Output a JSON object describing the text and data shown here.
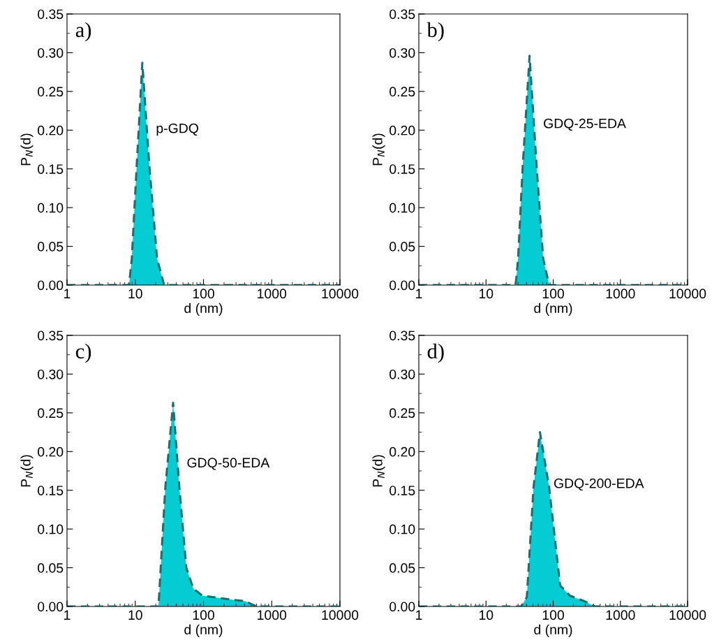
{
  "chart_data": [
    {
      "type": "area",
      "title": "a)",
      "xlabel": "d (nm)",
      "ylabel": "P$_{N}$(d)",
      "log": "x",
      "xlim": [
        1,
        10000
      ],
      "xticks": [
        1,
        10,
        100,
        1000,
        10000
      ],
      "ylim": [
        0,
        0.35
      ],
      "yticks": [
        {
          "value": 0,
          "label": "0.00"
        },
        {
          "value": 0.05,
          "label": "0.05"
        },
        {
          "value": 0.1,
          "label": "0.10"
        },
        {
          "value": 0.15,
          "label": "0.15"
        },
        {
          "value": 0.2,
          "label": "0.20"
        },
        {
          "value": 0.25,
          "label": "0.25"
        },
        {
          "value": 0.3,
          "label": "0.30"
        },
        {
          "value": 0.35,
          "label": "0.35"
        }
      ],
      "grid": false,
      "line_style": "dashed",
      "series": [
        {
          "name": "p-GDQ",
          "color": "#05cbd2",
          "x": [
            1,
            8.1,
            8.9,
            10.5,
            12.7,
            16.1,
            20.9,
            26.5,
            10000
          ],
          "values": [
            0,
            0,
            0.034,
            0.154,
            0.287,
            0.154,
            0.034,
            0,
            0
          ]
        }
      ]
    },
    {
      "type": "area",
      "title": "b)",
      "xlabel": "d (nm)",
      "ylabel": "P$_{N}$(d)",
      "log": "x",
      "xlim": [
        1,
        10000
      ],
      "xticks": [
        1,
        10,
        100,
        1000,
        10000
      ],
      "ylim": [
        0,
        0.35
      ],
      "yticks": [
        {
          "value": 0,
          "label": "0.00"
        },
        {
          "value": 0.05,
          "label": "0.05"
        },
        {
          "value": 0.1,
          "label": "0.10"
        },
        {
          "value": 0.15,
          "label": "0.15"
        },
        {
          "value": 0.2,
          "label": "0.20"
        },
        {
          "value": 0.25,
          "label": "0.25"
        },
        {
          "value": 0.3,
          "label": "0.30"
        },
        {
          "value": 0.35,
          "label": "0.35"
        }
      ],
      "grid": false,
      "line_style": "dashed",
      "series": [
        {
          "name": "GDQ-25-EDA",
          "color": "#05cbd2",
          "x": [
            1,
            27,
            28,
            30,
            35,
            44.5,
            57,
            71,
            87,
            10000
          ],
          "values": [
            0,
            0,
            0.005,
            0.034,
            0.15,
            0.296,
            0.15,
            0.034,
            0,
            0
          ]
        }
      ]
    },
    {
      "type": "area",
      "title": "c)",
      "xlabel": "d (nm)",
      "ylabel": "P$_{N}$(d)",
      "log": "x",
      "xlim": [
        1,
        10000
      ],
      "xticks": [
        1,
        10,
        100,
        1000,
        10000
      ],
      "ylim": [
        0,
        0.35
      ],
      "yticks": [
        {
          "value": 0,
          "label": "0.00"
        },
        {
          "value": 0.05,
          "label": "0.05"
        },
        {
          "value": 0.1,
          "label": "0.10"
        },
        {
          "value": 0.15,
          "label": "0.15"
        },
        {
          "value": 0.2,
          "label": "0.20"
        },
        {
          "value": 0.25,
          "label": "0.25"
        },
        {
          "value": 0.3,
          "label": "0.30"
        },
        {
          "value": 0.35,
          "label": "0.35"
        }
      ],
      "grid": false,
      "line_style": "dashed",
      "series": [
        {
          "name": "GDQ-50-EDA",
          "color": "#05cbd2",
          "x": [
            1,
            21.9,
            27.6,
            35.9,
            44.3,
            56,
            71,
            96,
            247,
            400,
            600,
            10000
          ],
          "values": [
            0,
            0,
            0.154,
            0.263,
            0.154,
            0.05,
            0.023,
            0.014,
            0.009,
            0.007,
            0,
            0
          ]
        }
      ]
    },
    {
      "type": "area",
      "title": "d)",
      "xlabel": "d (nm)",
      "ylabel": "P$_{N}$(d)",
      "log": "x",
      "xlim": [
        1,
        10000
      ],
      "xticks": [
        1,
        10,
        100,
        1000,
        10000
      ],
      "ylim": [
        0,
        0.35
      ],
      "yticks": [
        {
          "value": 0,
          "label": "0.00"
        },
        {
          "value": 0.05,
          "label": "0.05"
        },
        {
          "value": 0.1,
          "label": "0.10"
        },
        {
          "value": 0.15,
          "label": "0.15"
        },
        {
          "value": 0.2,
          "label": "0.20"
        },
        {
          "value": 0.25,
          "label": "0.25"
        },
        {
          "value": 0.3,
          "label": "0.30"
        },
        {
          "value": 0.35,
          "label": "0.35"
        }
      ],
      "grid": false,
      "line_style": "dashed",
      "series": [
        {
          "name": "GDQ-200-EDA",
          "color": "#05cbd2",
          "x": [
            1,
            33.3,
            40.5,
            51,
            63.5,
            87,
            127,
            177,
            288,
            420,
            10000
          ],
          "values": [
            0,
            0,
            0.012,
            0.154,
            0.225,
            0.154,
            0.027,
            0.014,
            0.007,
            0,
            0
          ]
        }
      ]
    }
  ]
}
